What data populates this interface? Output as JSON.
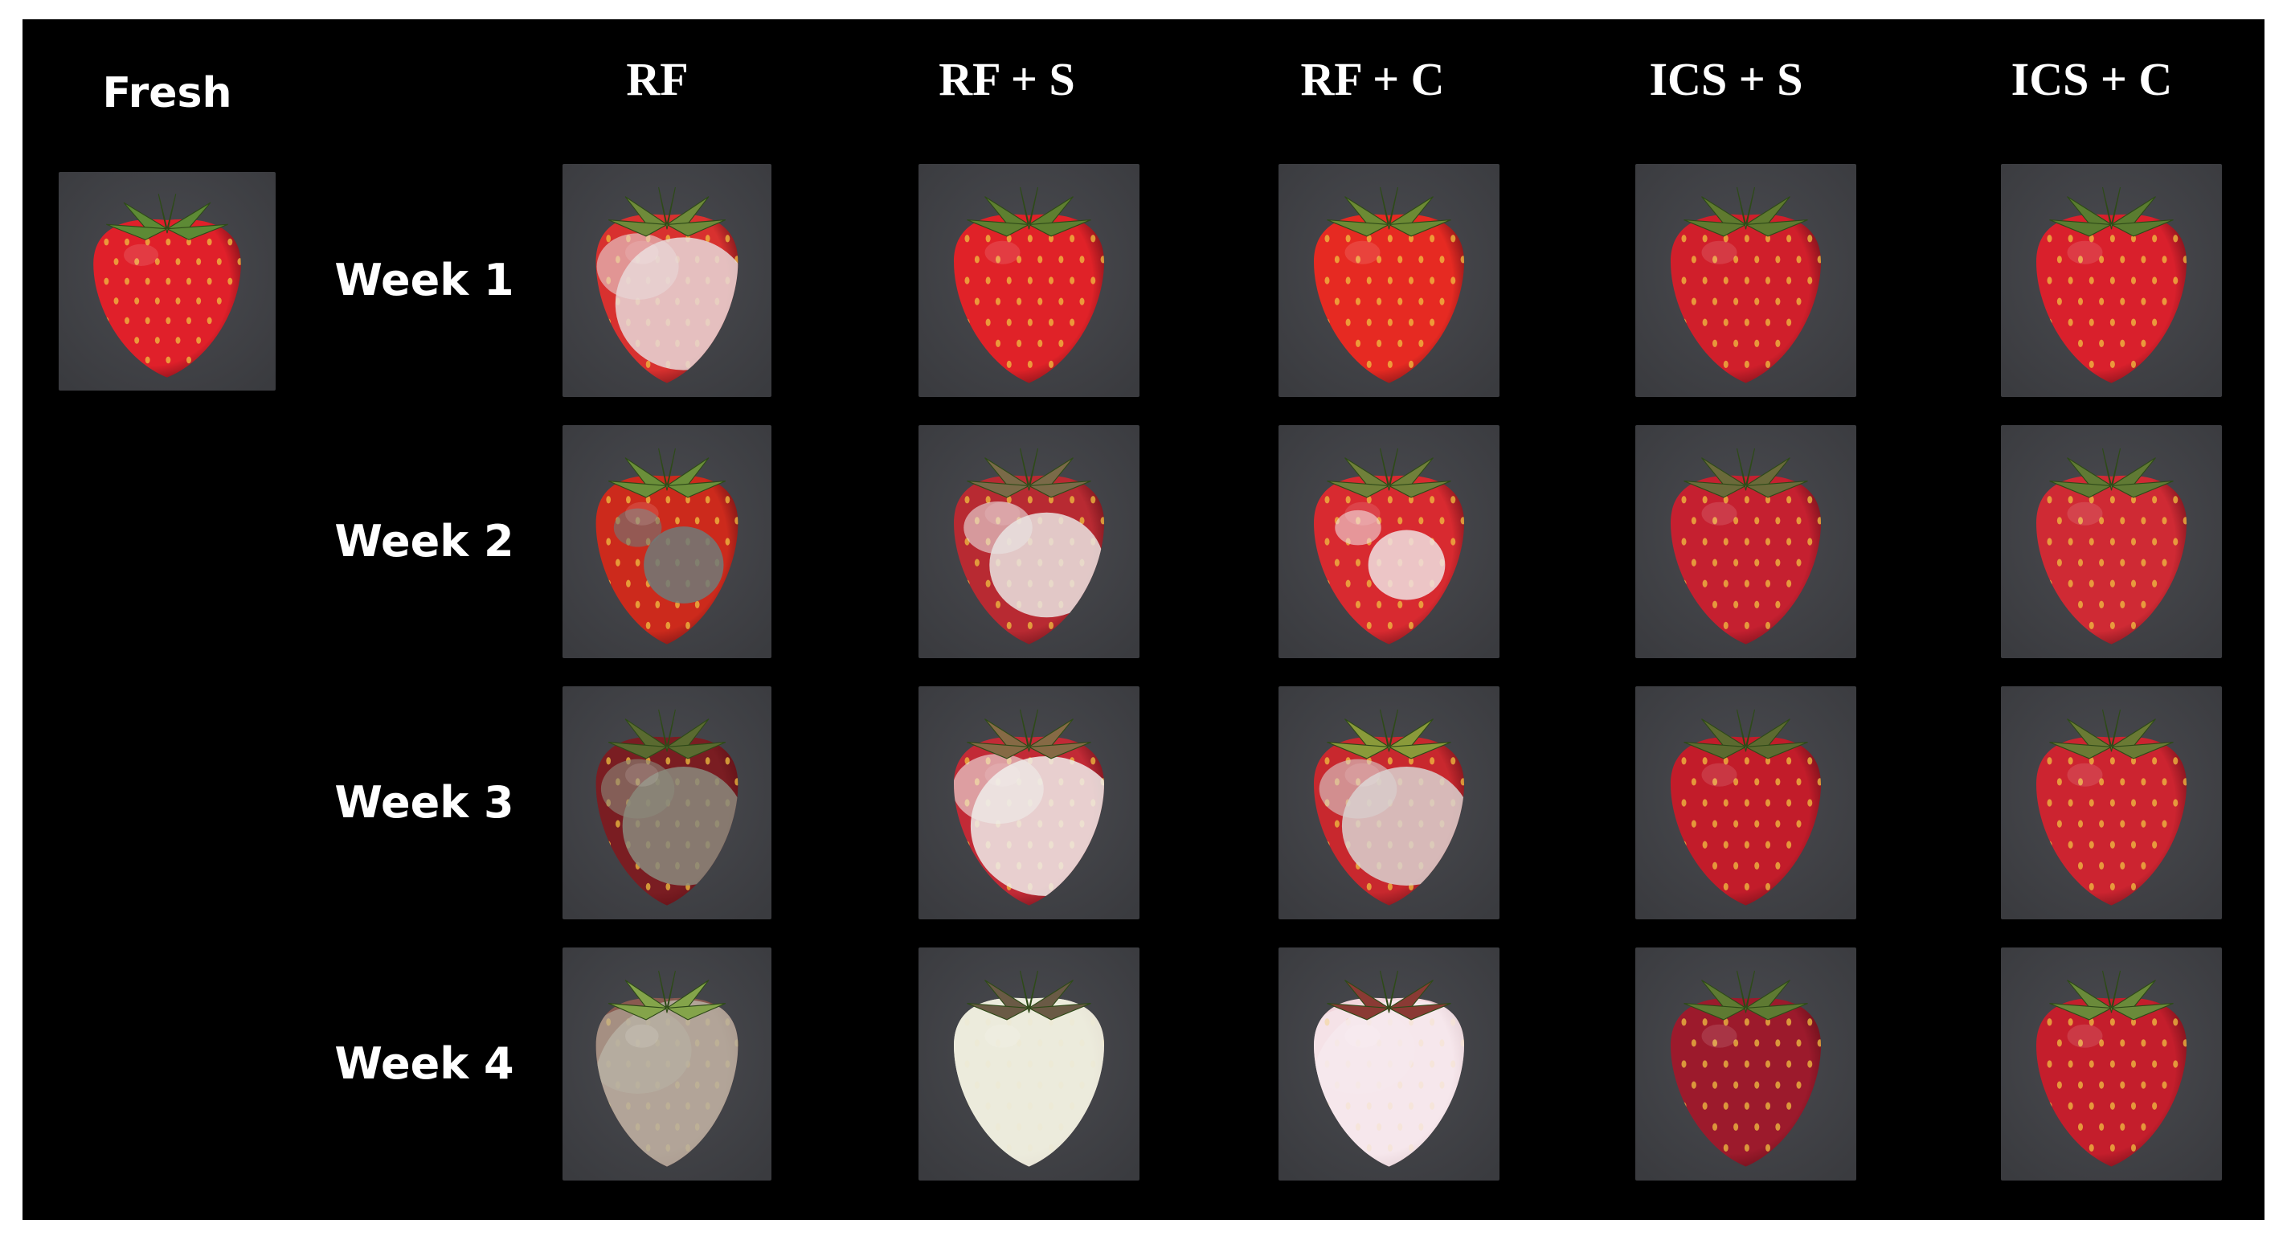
{
  "figure": {
    "fresh_label": "Fresh",
    "columns": [
      "RF",
      "RF + S",
      "RF + C",
      "ICS + S",
      "ICS + C"
    ],
    "rows": [
      "Week 1",
      "Week 2",
      "Week 3",
      "Week 4"
    ]
  },
  "colors": {
    "background": "#000000",
    "text": "#ffffff",
    "tile_background": "#3a3b3f"
  }
}
